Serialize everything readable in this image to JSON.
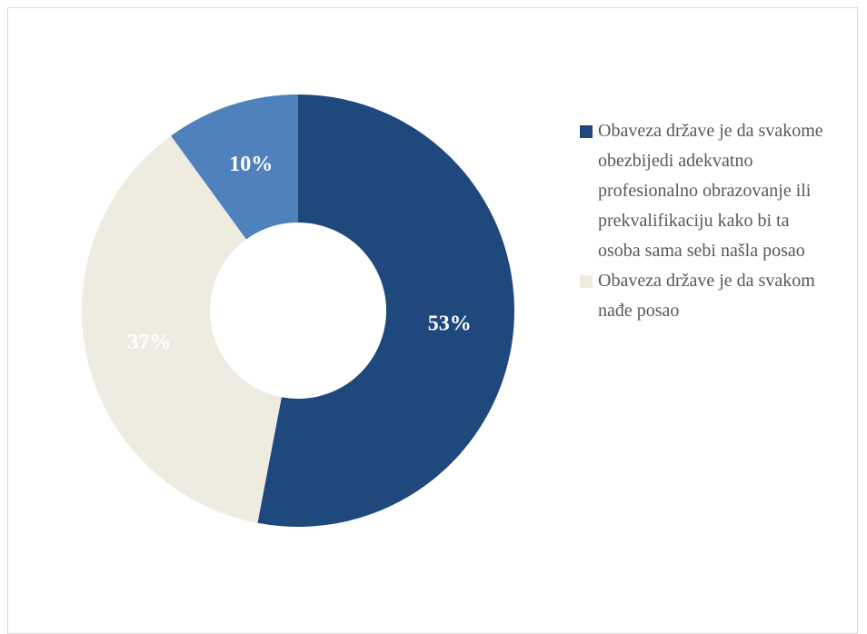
{
  "chart_data": {
    "type": "donut",
    "categories": [
      "Obaveza države je da svakome obezbijedi adekvatno profesionalno obrazovanje ili prekvalifikaciju kako bi ta osoba sama sebi našla posao",
      "Obaveza države je da svakom nađe posao",
      null
    ],
    "values": [
      53,
      37,
      10
    ],
    "value_labels": [
      "53%",
      "37%",
      "10%"
    ],
    "colors": [
      "#1f497d",
      "#eeece1",
      "#4f81bd"
    ],
    "legend": "right"
  }
}
